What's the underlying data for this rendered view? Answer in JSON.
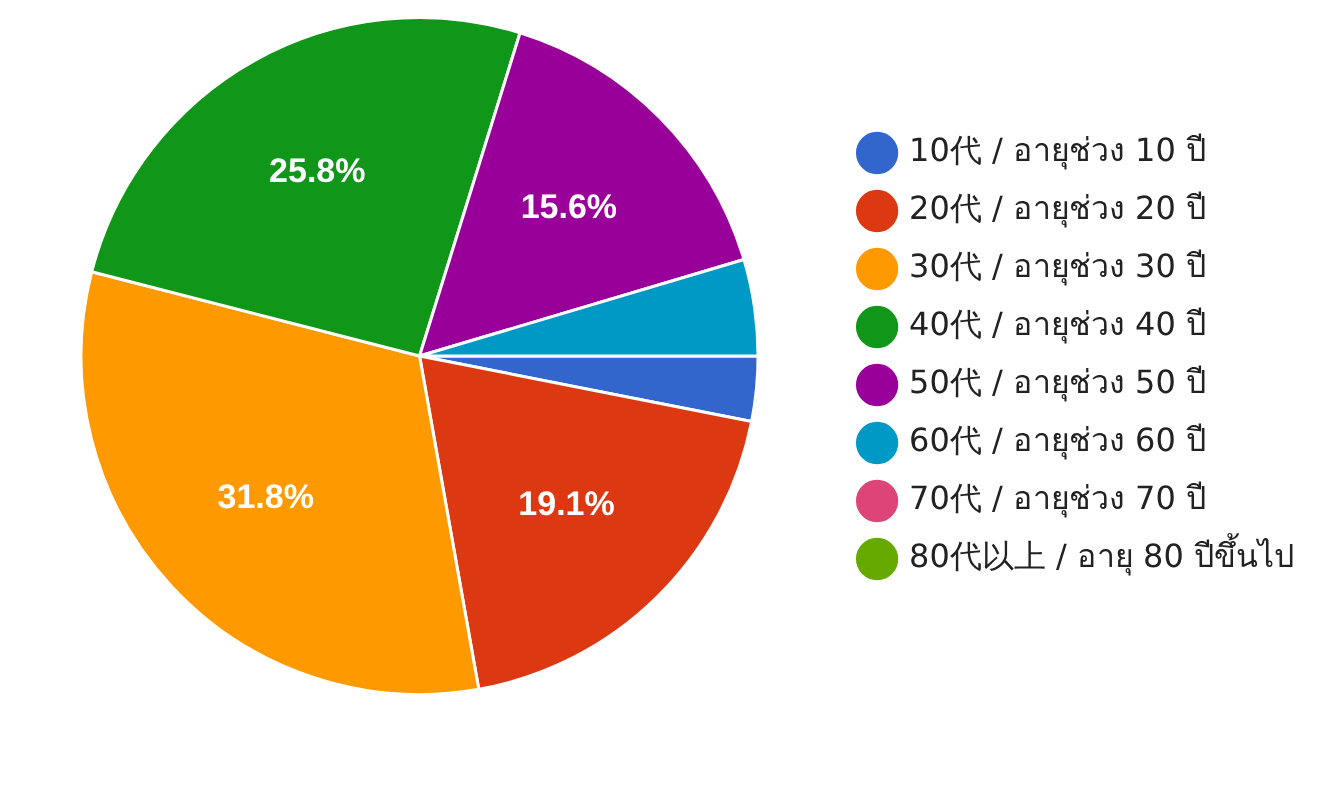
{
  "chart_data": {
    "type": "pie",
    "categories": [
      "10代 / อายุช่วง 10 ปี",
      "20代 / อายุช่วง 20 ปี",
      "30代 / อายุช่วง 30 ปี",
      "40代 / อายุช่วง 40 ปี",
      "50代 / อายุช่วง 50 ปี",
      "60代 / อายุช่วง 60 ปี",
      "70代 / อายุช่วง 70 ปี",
      "80代以上 / อายุ 80 ปีขึ้นไป"
    ],
    "values": [
      3.1,
      19.1,
      31.8,
      25.8,
      15.6,
      4.6,
      0,
      0
    ],
    "colors": [
      "#3366cc",
      "#dc3912",
      "#ff9900",
      "#109618",
      "#990099",
      "#0099c6",
      "#dd4477",
      "#66aa00"
    ],
    "value_labels": [
      null,
      "19.1%",
      "31.8%",
      "25.8%",
      "15.6%",
      null,
      null,
      null
    ],
    "legend": "right"
  }
}
